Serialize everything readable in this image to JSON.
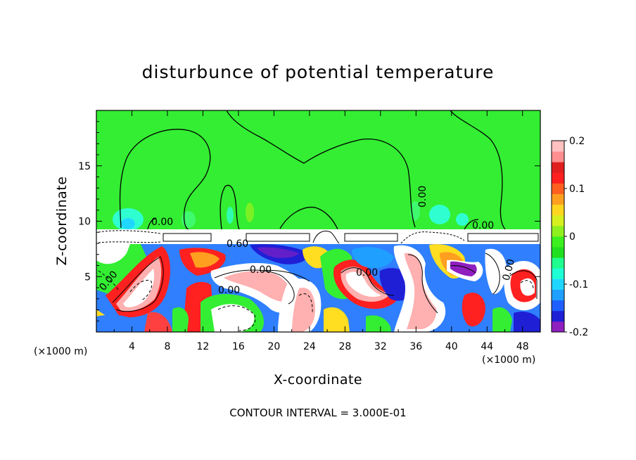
{
  "chart_data": {
    "type": "heatmap",
    "title": "disturbunce of potential temperature",
    "xlabel": "X-coordinate",
    "ylabel": "Z-coordinate",
    "x_unit": "(×1000 m)",
    "z_unit": "(×1000 m)",
    "xlim": [
      0,
      50
    ],
    "ylim": [
      0,
      20
    ],
    "x_ticks": [
      4,
      8,
      12,
      16,
      20,
      24,
      28,
      32,
      36,
      40,
      44,
      48
    ],
    "y_ticks": [
      5,
      10,
      15
    ],
    "colorbar": {
      "range": [
        -0.2,
        0.2
      ],
      "tick_labels": [
        "0.2",
        "0.1",
        "0",
        "-0.1",
        "-0.2"
      ],
      "tick_values": [
        0.2,
        0.1,
        0,
        -0.1,
        -0.2
      ],
      "colors": [
        "#8f1fbf",
        "#1f1fd6",
        "#1f5fff",
        "#1f9fff",
        "#1fd6ff",
        "#1fffd6",
        "#1fff8f",
        "#1fe01f",
        "#3cf01f",
        "#8ff01f",
        "#d6f01f",
        "#ffd61f",
        "#ff9f1f",
        "#ff5f1f",
        "#ff1f1f",
        "#e01f1f",
        "#ff8f8f",
        "#ffc0c0"
      ]
    },
    "contour_labels": [
      "0.00",
      "0.00",
      "0.00",
      "0.00",
      "0.00",
      "0.00",
      "0.00",
      "0.60",
      "0.00"
    ],
    "footer": "CONTOUR INTERVAL = 3.000E-01"
  },
  "colors": {
    "background_field": "#33ee33",
    "cloud_white": "#ffffff"
  }
}
